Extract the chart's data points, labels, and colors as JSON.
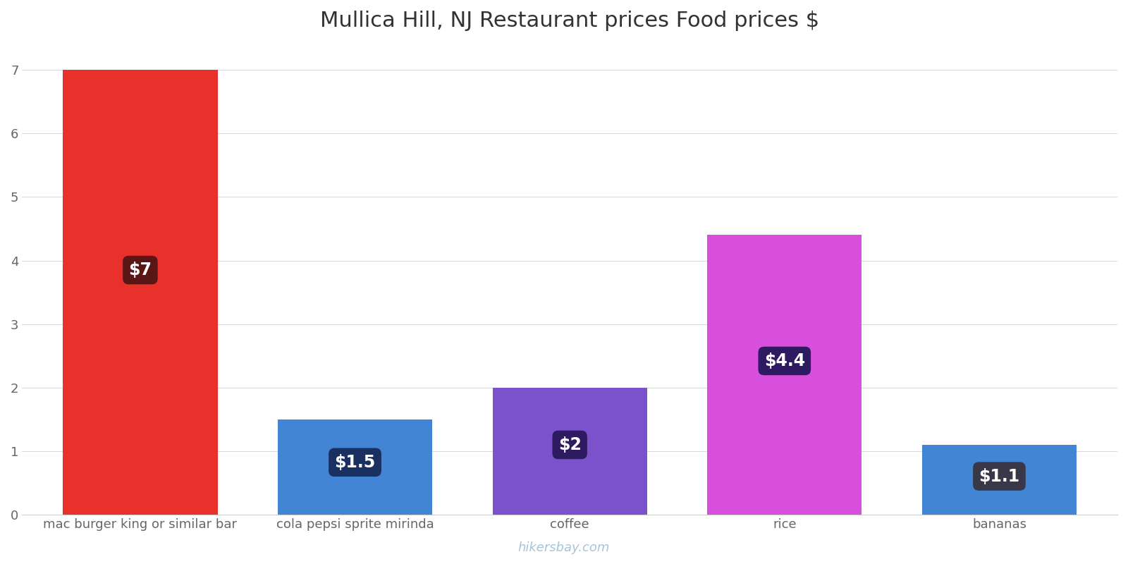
{
  "title": "Mullica Hill, NJ Restaurant prices Food prices $",
  "categories": [
    "mac burger king or similar bar",
    "cola pepsi sprite mirinda",
    "coffee",
    "rice",
    "bananas"
  ],
  "values": [
    7,
    1.5,
    2,
    4.4,
    1.1
  ],
  "bar_colors": [
    "#e8312a",
    "#4285d4",
    "#7b52cc",
    "#d94fdd",
    "#4285d4"
  ],
  "label_texts": [
    "$7",
    "$1.5",
    "$2",
    "$4.4",
    "$1.1"
  ],
  "label_bg_colors": [
    "#5a1515",
    "#1a3060",
    "#2e1a60",
    "#2e1a60",
    "#383848"
  ],
  "ylabel_values": [
    0,
    1,
    2,
    3,
    4,
    5,
    6,
    7
  ],
  "ylim": [
    0,
    7.4
  ],
  "background_color": "#ffffff",
  "grid_color": "#d8d8d8",
  "watermark": "hikersbay.com",
  "title_fontsize": 22,
  "tick_fontsize": 13,
  "label_fontsize": 17,
  "bar_width": 0.72
}
